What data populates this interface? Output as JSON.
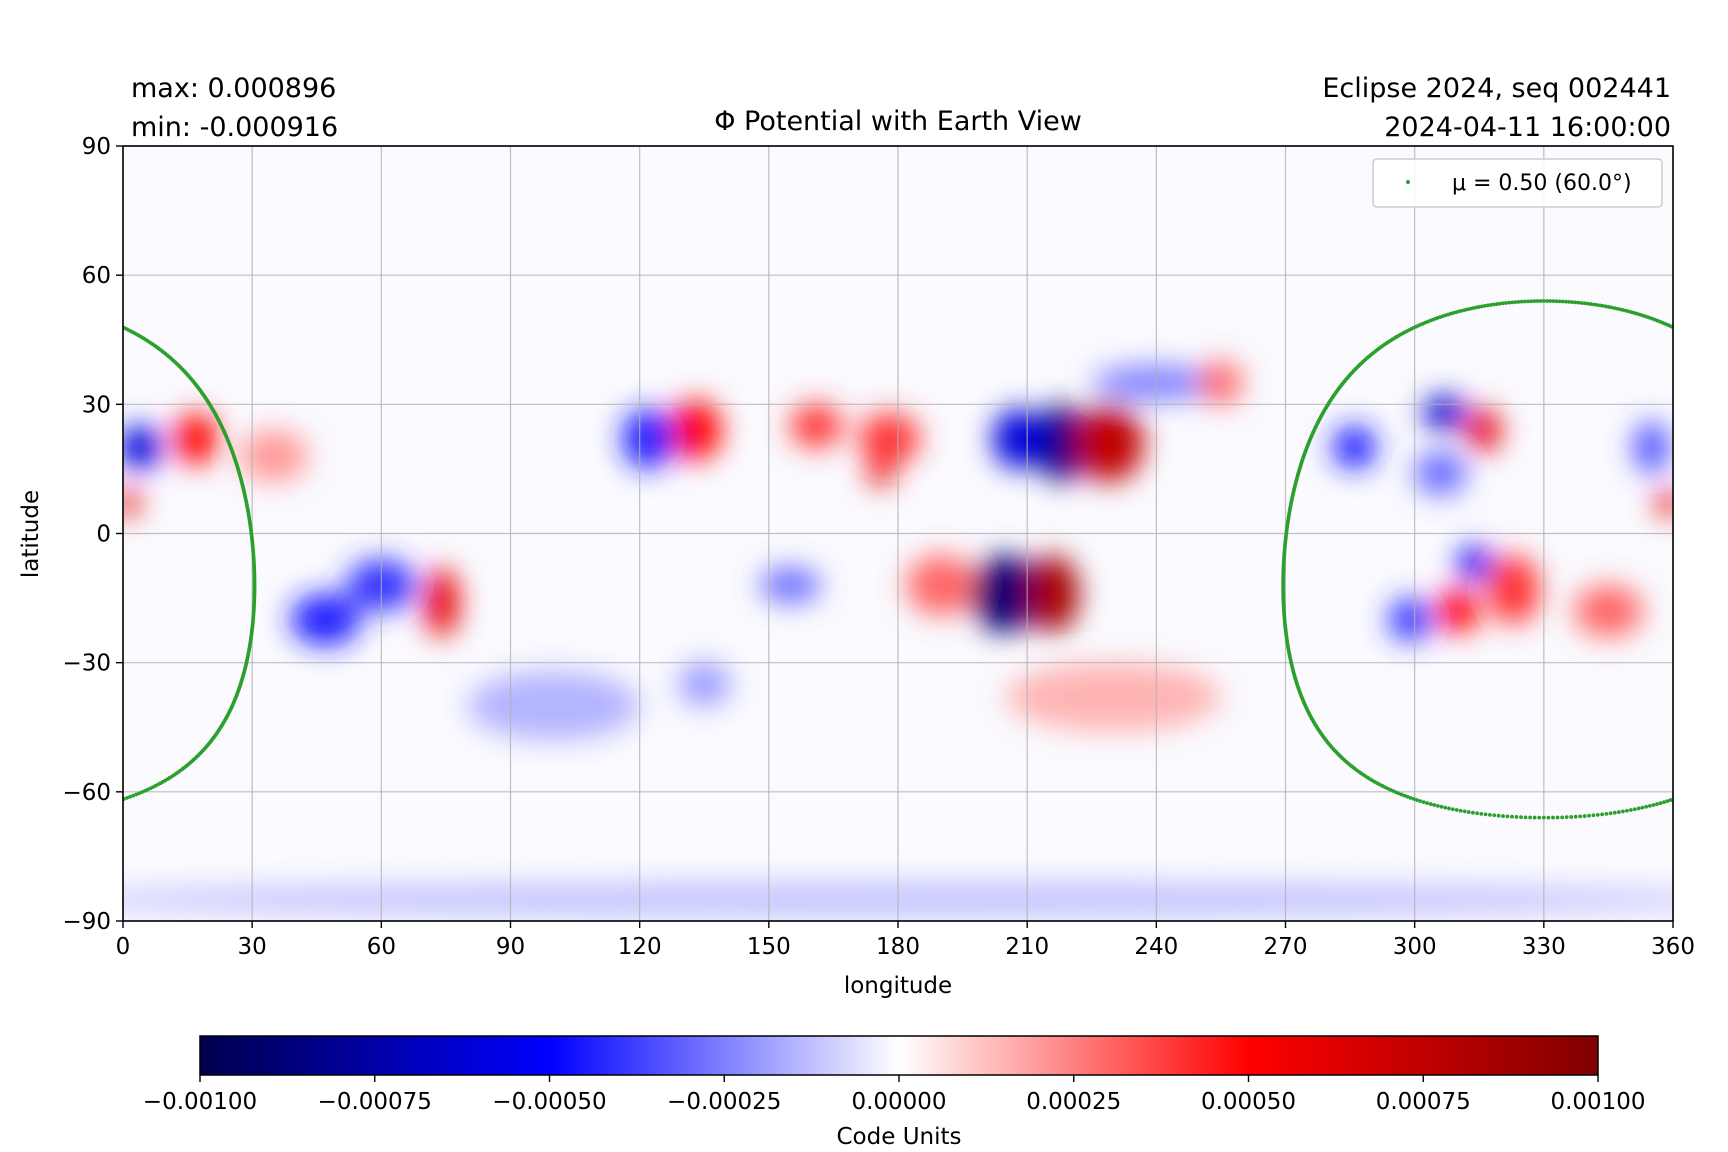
{
  "header": {
    "max_label": "max:  0.000896",
    "min_label": "min:  -0.000916",
    "title": "Φ Potential with Earth View",
    "run_label": "Eclipse 2024, seq 002441",
    "datetime": "2024-04-11 16:00:00"
  },
  "chart_data": {
    "type": "heatmap",
    "title": "Φ Potential with Earth View",
    "xlabel": "longitude",
    "ylabel": "latitude",
    "xlim": [
      0,
      360
    ],
    "ylim": [
      -90,
      90
    ],
    "x_ticks": [
      0,
      30,
      60,
      90,
      120,
      150,
      180,
      210,
      240,
      270,
      300,
      330,
      360
    ],
    "x_tick_labels": [
      "0",
      "30",
      "60",
      "90",
      "120",
      "150",
      "180",
      "210",
      "240",
      "270",
      "300",
      "330",
      "360"
    ],
    "y_ticks": [
      90,
      60,
      30,
      0,
      -30,
      -60,
      -90
    ],
    "y_tick_labels": [
      "90",
      "60",
      "30",
      "0",
      "−30",
      "−60",
      "−90"
    ],
    "grid": true,
    "max": 0.000896,
    "min": -0.000916,
    "colormap": "seismic",
    "colorbar": {
      "label": "Code Units",
      "range": [
        -0.001,
        0.001
      ],
      "ticks": [
        -0.001,
        -0.00075,
        -0.0005,
        -0.00025,
        0,
        0.00025,
        0.0005,
        0.00075,
        0.001
      ],
      "tick_labels": [
        "−0.00100",
        "−0.00075",
        "−0.00050",
        "−0.00025",
        "0.00000",
        "0.00025",
        "0.00050",
        "0.00075",
        "0.00100"
      ],
      "stops": [
        "#00004d",
        "#0000ff",
        "#ffffff",
        "#ff0000",
        "#800000"
      ]
    },
    "blobs": [
      {
        "lon": 205,
        "lat": -14,
        "value": -0.0009,
        "rlon": 8,
        "rlat": 9
      },
      {
        "lon": 216,
        "lat": -14,
        "value": 0.00085,
        "rlon": 6,
        "rlat": 9
      },
      {
        "lon": 190,
        "lat": -12,
        "value": 0.0003,
        "rlon": 8,
        "rlat": 7
      },
      {
        "lon": 218,
        "lat": 21,
        "value": -0.00085,
        "rlon": 6,
        "rlat": 9
      },
      {
        "lon": 208,
        "lat": 22,
        "value": -0.0006,
        "rlon": 6,
        "rlat": 7
      },
      {
        "lon": 229,
        "lat": 21,
        "value": 0.00075,
        "rlon": 8,
        "rlat": 9
      },
      {
        "lon": 178,
        "lat": 22,
        "value": 0.0004,
        "rlon": 7,
        "rlat": 6
      },
      {
        "lon": 176,
        "lat": 14,
        "value": 0.0006,
        "rlon": 3,
        "rlat": 3
      },
      {
        "lon": 161,
        "lat": 25,
        "value": 0.0004,
        "rlon": 6,
        "rlat": 5
      },
      {
        "lon": 133,
        "lat": 24,
        "value": 0.0005,
        "rlon": 6,
        "rlat": 7
      },
      {
        "lon": 122,
        "lat": 22,
        "value": -0.00045,
        "rlon": 6,
        "rlat": 7
      },
      {
        "lon": 4,
        "lat": 20,
        "value": -0.0006,
        "rlon": 5,
        "rlat": 5
      },
      {
        "lon": 17,
        "lat": 22,
        "value": 0.0005,
        "rlon": 5,
        "rlat": 6
      },
      {
        "lon": 1,
        "lat": 7,
        "value": 0.0006,
        "rlon": 3,
        "rlat": 3
      },
      {
        "lon": 35,
        "lat": 18,
        "value": 0.0002,
        "rlon": 8,
        "rlat": 6
      },
      {
        "lon": 47,
        "lat": -20,
        "value": -0.00045,
        "rlon": 8,
        "rlat": 6
      },
      {
        "lon": 60,
        "lat": -12,
        "value": -0.0004,
        "rlon": 8,
        "rlat": 6
      },
      {
        "lon": 74,
        "lat": -16,
        "value": 0.0006,
        "rlon": 4,
        "rlat": 8
      },
      {
        "lon": 155,
        "lat": -12,
        "value": -0.0003,
        "rlon": 7,
        "rlat": 4
      },
      {
        "lon": 135,
        "lat": -35,
        "value": -0.0002,
        "rlon": 6,
        "rlat": 5
      },
      {
        "lon": 286,
        "lat": 20,
        "value": -0.00045,
        "rlon": 5,
        "rlat": 5
      },
      {
        "lon": 307,
        "lat": 28,
        "value": -0.00065,
        "rlon": 5,
        "rlat": 4
      },
      {
        "lon": 316,
        "lat": 24,
        "value": 0.0006,
        "rlon": 4,
        "rlat": 5
      },
      {
        "lon": 306,
        "lat": 14,
        "value": -0.0003,
        "rlon": 6,
        "rlat": 5
      },
      {
        "lon": 355,
        "lat": 20,
        "value": -0.00035,
        "rlon": 4,
        "rlat": 6
      },
      {
        "lon": 359,
        "lat": 7,
        "value": 0.0006,
        "rlon": 3,
        "rlat": 3
      },
      {
        "lon": 314,
        "lat": -7,
        "value": -0.00055,
        "rlon": 4,
        "rlat": 4
      },
      {
        "lon": 299,
        "lat": -20,
        "value": -0.0004,
        "rlon": 5,
        "rlat": 5
      },
      {
        "lon": 310,
        "lat": -18,
        "value": 0.0005,
        "rlon": 5,
        "rlat": 5
      },
      {
        "lon": 323,
        "lat": -13,
        "value": 0.0004,
        "rlon": 6,
        "rlat": 8
      },
      {
        "lon": 345,
        "lat": -18,
        "value": 0.0003,
        "rlon": 8,
        "rlat": 6
      },
      {
        "lon": 240,
        "lat": 35,
        "value": -0.00025,
        "rlon": 15,
        "rlat": 4
      },
      {
        "lon": 255,
        "lat": 35,
        "value": 0.0003,
        "rlon": 5,
        "rlat": 5
      },
      {
        "lon": 100,
        "lat": -40,
        "value": -0.00015,
        "rlon": 20,
        "rlat": 8
      },
      {
        "lon": 230,
        "lat": -38,
        "value": 0.00015,
        "rlon": 25,
        "rlat": 8
      },
      {
        "lon": 180,
        "lat": -85,
        "value": -0.00012,
        "rlon": 200,
        "rlat": 4
      }
    ],
    "series": [
      {
        "name": "μ = 0.50 (60.0°)",
        "type": "scatter",
        "color": "#2ca02c",
        "center_lon": 330,
        "center_lat": -6,
        "radius_deg": 60
      }
    ],
    "legend": {
      "location": "top-right",
      "text": "μ = 0.50 (60.0°)"
    }
  }
}
